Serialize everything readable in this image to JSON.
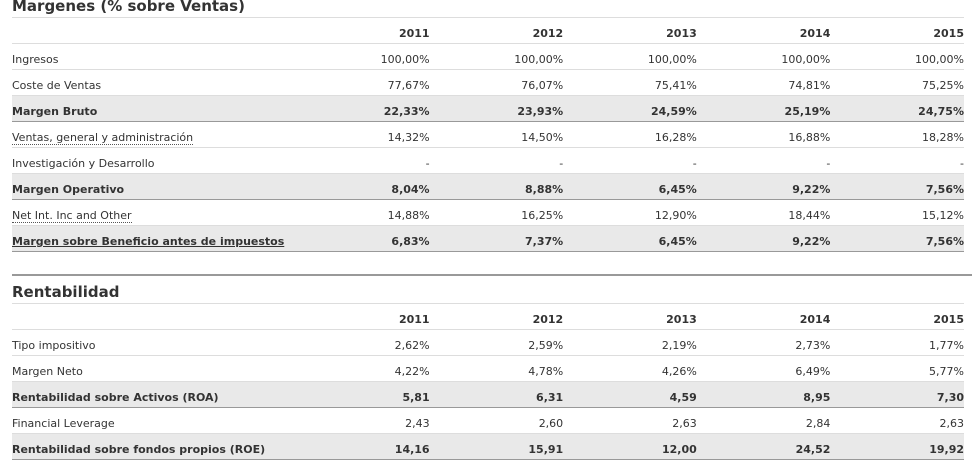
{
  "sections": [
    {
      "title": "Margenes (% sobre Ventas)",
      "columns": [
        "2011",
        "2012",
        "2013",
        "2014",
        "2015"
      ],
      "rows": [
        {
          "label": "Ingresos",
          "values": [
            "100,00%",
            "100,00%",
            "100,00%",
            "100,00%",
            "100,00%"
          ]
        },
        {
          "label": "Coste de Ventas",
          "values": [
            "77,67%",
            "76,07%",
            "75,41%",
            "74,81%",
            "75,25%"
          ]
        },
        {
          "label": "Margen Bruto",
          "values": [
            "22,33%",
            "23,93%",
            "24,59%",
            "25,19%",
            "24,75%"
          ],
          "highlight": true
        },
        {
          "label": "Ventas, general y administración",
          "values": [
            "14,32%",
            "14,50%",
            "16,28%",
            "16,88%",
            "18,28%"
          ],
          "dotted": true
        },
        {
          "label": "Investigación y Desarrollo",
          "values": [
            "-",
            "-",
            "-",
            "-",
            "-"
          ]
        },
        {
          "label": "Margen Operativo",
          "values": [
            "8,04%",
            "8,88%",
            "6,45%",
            "9,22%",
            "7,56%"
          ],
          "highlight": true
        },
        {
          "label": "Net Int. Inc and Other",
          "values": [
            "14,88%",
            "16,25%",
            "12,90%",
            "18,44%",
            "15,12%"
          ],
          "dotted": true
        },
        {
          "label": "Margen sobre Beneficio antes de impuestos",
          "values": [
            "6,83%",
            "7,37%",
            "6,45%",
            "9,22%",
            "7,56%"
          ],
          "highlight": true,
          "underline": true
        }
      ]
    },
    {
      "title": "Rentabilidad",
      "columns": [
        "2011",
        "2012",
        "2013",
        "2014",
        "2015"
      ],
      "rows": [
        {
          "label": "Tipo impositivo",
          "values": [
            "2,62%",
            "2,59%",
            "2,19%",
            "2,73%",
            "1,77%"
          ]
        },
        {
          "label": "Margen Neto",
          "values": [
            "4,22%",
            "4,78%",
            "4,26%",
            "6,49%",
            "5,77%"
          ]
        },
        {
          "label": "Rentabilidad sobre Activos (ROA)",
          "values": [
            "5,81",
            "6,31",
            "4,59",
            "8,95",
            "7,30"
          ],
          "highlight": true
        },
        {
          "label": "Financial Leverage",
          "values": [
            "2,43",
            "2,60",
            "2,63",
            "2,84",
            "2,63"
          ]
        },
        {
          "label": "Rentabilidad sobre fondos propios (ROE)",
          "values": [
            "14,16",
            "15,91",
            "12,00",
            "24,52",
            "19,92"
          ],
          "highlight": true
        }
      ]
    }
  ]
}
